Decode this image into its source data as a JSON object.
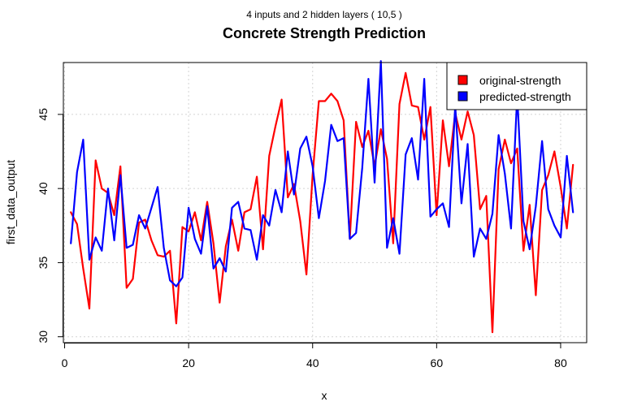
{
  "chart_data": {
    "type": "line",
    "subtitle": "4 inputs and 2 hidden layers ( 10,5 )",
    "title": "Concrete Strength Prediction",
    "xlabel": "x",
    "ylabel": "first_data_output",
    "xlim": [
      -0.2,
      84.2
    ],
    "ylim": [
      29.6,
      48.5
    ],
    "xticks": [
      0,
      20,
      40,
      60,
      80
    ],
    "yticks": [
      30,
      35,
      40,
      45
    ],
    "grid": true,
    "legend_position": "top-right",
    "series": [
      {
        "name": "original-strength",
        "color": "#ff0000",
        "x": [
          1,
          2,
          3,
          4,
          5,
          6,
          7,
          8,
          9,
          10,
          11,
          12,
          13,
          14,
          15,
          16,
          17,
          18,
          19,
          20,
          21,
          22,
          23,
          24,
          25,
          26,
          27,
          28,
          29,
          30,
          31,
          32,
          33,
          34,
          35,
          36,
          37,
          38,
          39,
          40,
          41,
          42,
          43,
          44,
          45,
          46,
          47,
          48,
          49,
          50,
          51,
          52,
          53,
          54,
          55,
          56,
          57,
          58,
          59,
          60,
          61,
          62,
          63,
          64,
          65,
          66,
          67,
          68,
          69,
          70,
          71,
          72,
          73,
          74,
          75,
          76,
          77,
          78,
          79,
          80,
          81,
          82
        ],
        "values": [
          38.4,
          37.6,
          34.6,
          31.9,
          41.9,
          40.0,
          39.7,
          38.2,
          41.5,
          33.3,
          33.9,
          37.7,
          37.9,
          36.5,
          35.5,
          35.4,
          35.8,
          30.9,
          37.4,
          37.1,
          38.4,
          36.5,
          39.1,
          36.3,
          32.3,
          36.1,
          37.9,
          35.8,
          38.4,
          38.6,
          40.8,
          35.9,
          42.2,
          44.2,
          46.0,
          39.4,
          40.3,
          37.8,
          34.2,
          40.9,
          45.9,
          45.9,
          46.4,
          45.9,
          44.6,
          36.6,
          44.5,
          42.8,
          43.9,
          41.5,
          44.0,
          42.0,
          36.3,
          45.7,
          47.8,
          45.6,
          45.5,
          43.3,
          45.5,
          38.2,
          44.6,
          41.5,
          45.1,
          43.3,
          45.2,
          43.6,
          38.6,
          39.5,
          30.3,
          41.3,
          43.3,
          41.7,
          42.7,
          35.8,
          38.9,
          32.8,
          39.9,
          40.9,
          42.5,
          40.1,
          37.3,
          41.6
        ]
      },
      {
        "name": "predicted-strength",
        "color": "#0000ff",
        "x": [
          1,
          2,
          3,
          4,
          5,
          6,
          7,
          8,
          9,
          10,
          11,
          12,
          13,
          14,
          15,
          16,
          17,
          18,
          19,
          20,
          21,
          22,
          23,
          24,
          25,
          26,
          27,
          28,
          29,
          30,
          31,
          32,
          33,
          34,
          35,
          36,
          37,
          38,
          39,
          40,
          41,
          42,
          43,
          44,
          45,
          46,
          47,
          48,
          49,
          50,
          51,
          52,
          53,
          54,
          55,
          56,
          57,
          58,
          59,
          60,
          61,
          62,
          63,
          64,
          65,
          66,
          67,
          68,
          69,
          70,
          71,
          72,
          73,
          74,
          75,
          76,
          77,
          78,
          79,
          80,
          81,
          82
        ],
        "values": [
          36.3,
          41.1,
          43.3,
          35.2,
          36.7,
          35.8,
          40.0,
          36.5,
          40.9,
          36.0,
          36.2,
          38.2,
          37.3,
          38.7,
          40.1,
          36.0,
          33.8,
          33.4,
          34.0,
          38.7,
          36.6,
          35.6,
          38.8,
          34.6,
          35.3,
          34.4,
          38.7,
          39.1,
          37.3,
          37.2,
          35.2,
          38.2,
          37.5,
          39.9,
          38.4,
          42.5,
          39.6,
          42.7,
          43.5,
          41.5,
          38.0,
          40.5,
          44.3,
          43.2,
          43.4,
          36.6,
          37.0,
          41.4,
          47.4,
          40.4,
          48.6,
          36.0,
          38.0,
          35.6,
          42.3,
          43.4,
          40.6,
          47.4,
          38.1,
          38.6,
          39.0,
          37.4,
          45.6,
          39.0,
          43.0,
          35.4,
          37.3,
          36.6,
          38.3,
          43.6,
          41.0,
          37.3,
          46.3,
          37.8,
          35.9,
          38.8,
          43.2,
          38.6,
          37.5,
          36.7,
          42.2,
          38.4
        ]
      }
    ]
  }
}
